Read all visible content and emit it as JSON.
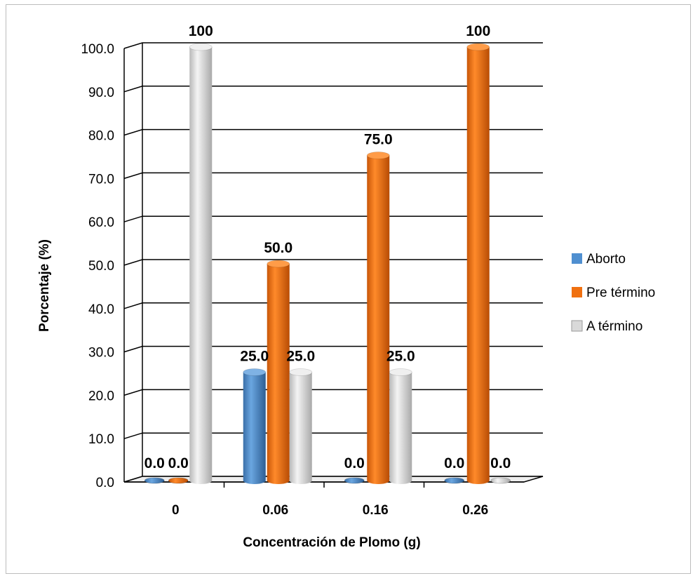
{
  "chart_data": {
    "type": "bar",
    "title": "",
    "xlabel": "Concentración de Plomo (g)",
    "ylabel": "Porcentaje (%)",
    "ylim": [
      0,
      100
    ],
    "yticks": [
      "0.0",
      "10.0",
      "20.0",
      "30.0",
      "40.0",
      "50.0",
      "60.0",
      "70.0",
      "80.0",
      "90.0",
      "100.0"
    ],
    "categories": [
      "0",
      "0.06",
      "0.16",
      "0.26"
    ],
    "series": [
      {
        "name": "Aborto",
        "color": "#4f8fd0",
        "values": [
          0,
          25,
          0,
          0
        ],
        "labels": [
          "0.0",
          "25.0",
          "0.0",
          "0.0"
        ]
      },
      {
        "name": "Pre término",
        "color": "#f07010",
        "values": [
          0,
          50,
          75,
          100
        ],
        "labels": [
          "0.0",
          "50.0",
          "75.0",
          "100"
        ]
      },
      {
        "name": "A término",
        "color": "#d9d9d9",
        "values": [
          100,
          25,
          25,
          0
        ],
        "labels": [
          "100",
          "25.0",
          "25.0",
          "0.0"
        ]
      }
    ],
    "grid": true,
    "legend_position": "right",
    "style": "3d-cylinder"
  }
}
